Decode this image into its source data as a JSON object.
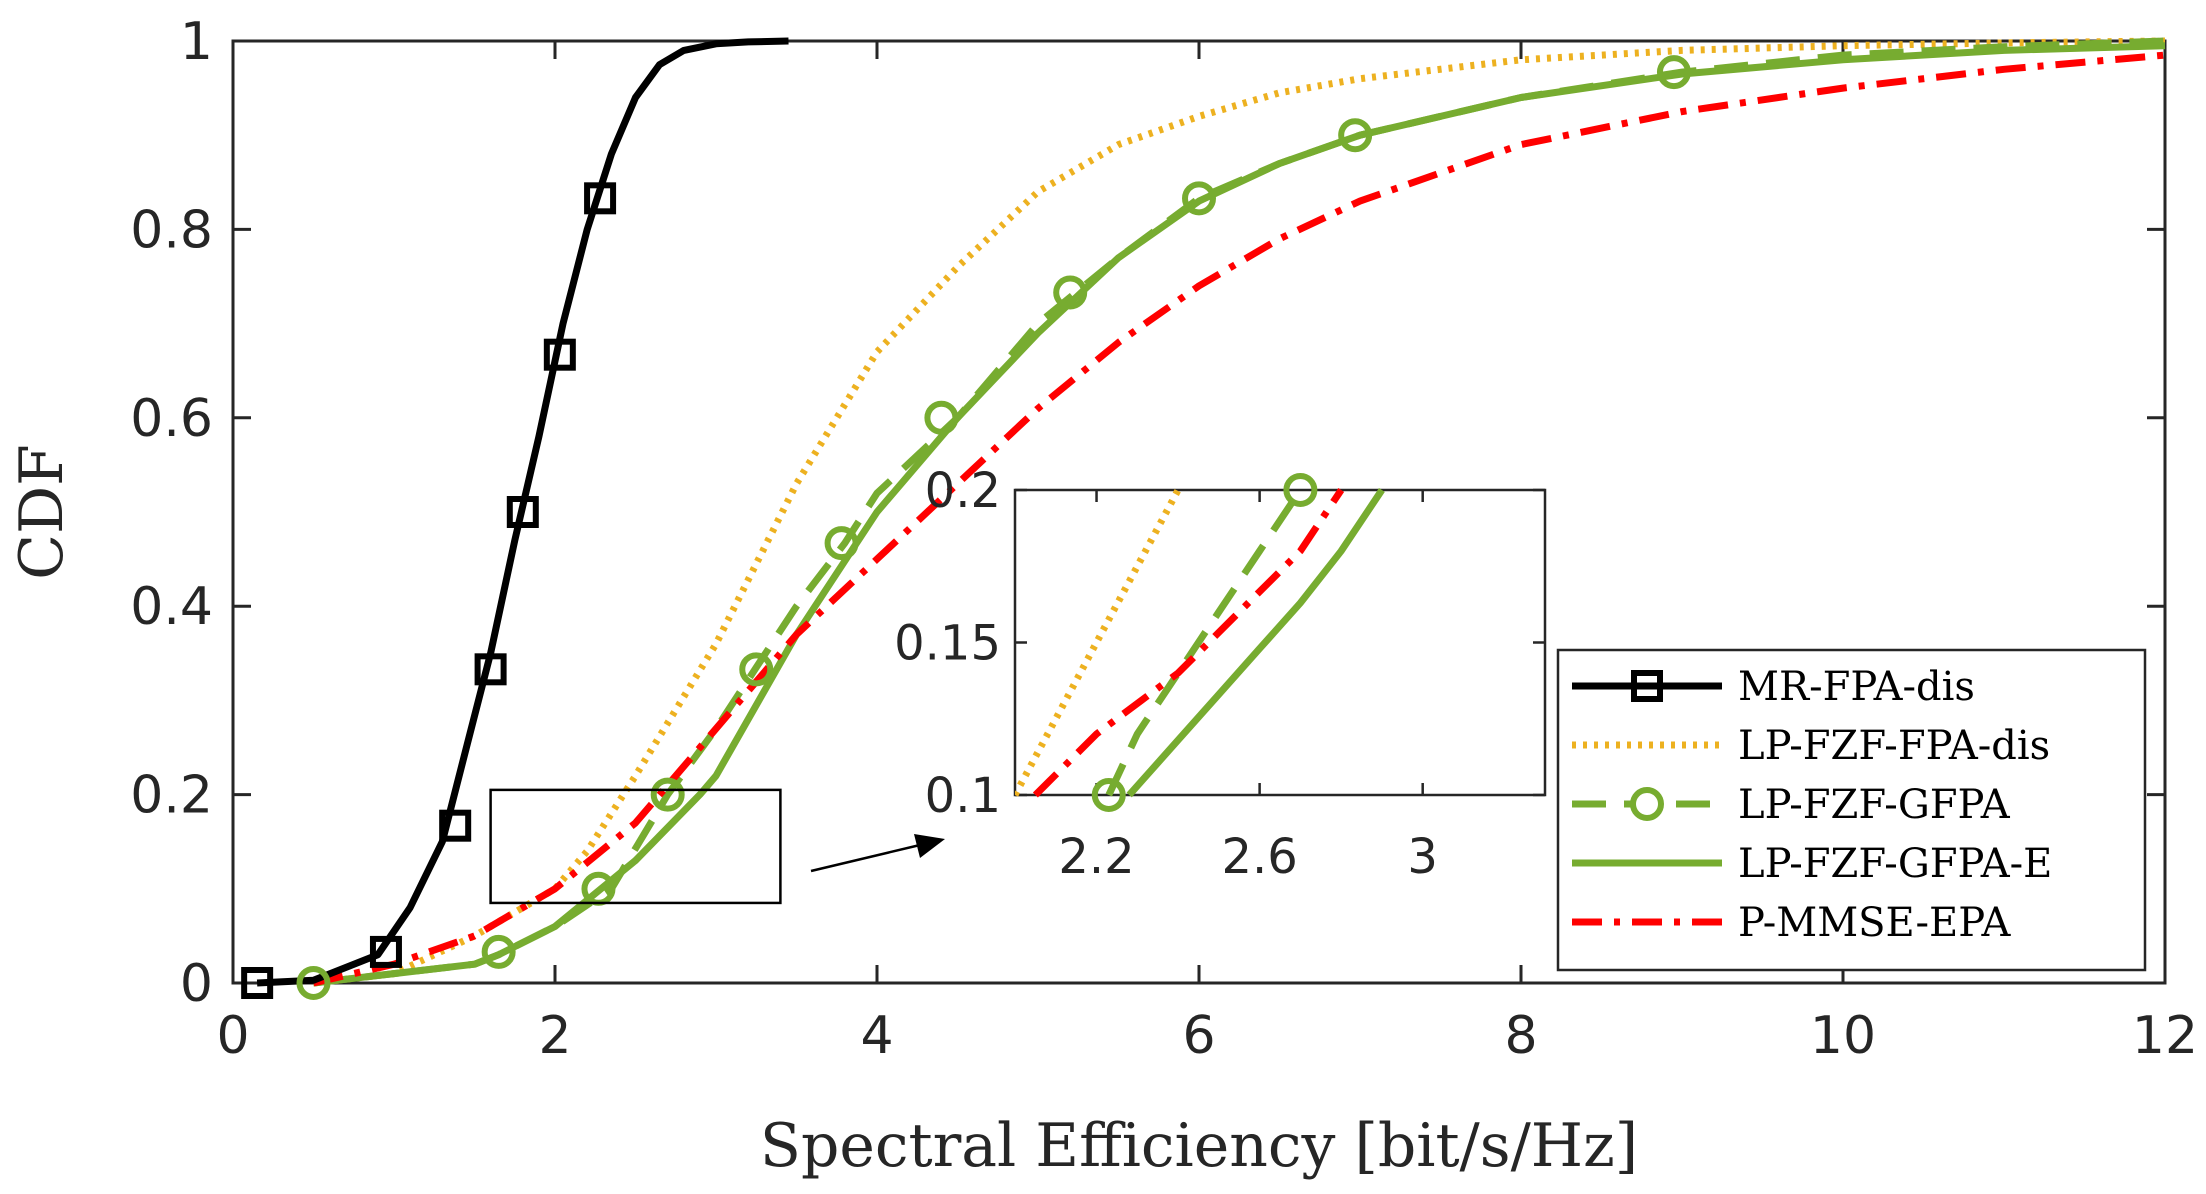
{
  "chart_data": {
    "type": "line",
    "title": "",
    "xlabel": "Spectral Efficiency [bit/s/Hz]",
    "ylabel": "CDF",
    "xlim": [
      0,
      12
    ],
    "ylim": [
      0,
      1
    ],
    "xticks": [
      0,
      2,
      4,
      6,
      8,
      10,
      12
    ],
    "yticks": [
      0,
      0.2,
      0.4,
      0.6,
      0.8,
      1
    ],
    "xtick_labels": [
      "0",
      "2",
      "4",
      "6",
      "8",
      "10",
      "12"
    ],
    "ytick_labels": [
      "0",
      "0.2",
      "0.4",
      "0.6",
      "0.8",
      "1"
    ],
    "grid": false,
    "legend_position": "lower-right",
    "colors": {
      "black": "#000000",
      "orange": "#EDB120",
      "green": "#77AC30",
      "red": "#FF0000"
    },
    "series": [
      {
        "name": "MR-FPA-dis",
        "color": "#000000",
        "style": "solid",
        "marker": "square",
        "x": [
          0.15,
          0.5,
          0.9,
          1.1,
          1.3,
          1.45,
          1.6,
          1.75,
          1.9,
          2.05,
          2.2,
          2.35,
          2.5,
          2.65,
          2.8,
          3.0,
          3.2,
          3.45
        ],
        "y": [
          0,
          0.003,
          0.03,
          0.08,
          0.15,
          0.25,
          0.35,
          0.47,
          0.58,
          0.7,
          0.8,
          0.88,
          0.94,
          0.975,
          0.99,
          0.997,
          0.999,
          1.0
        ],
        "marker_x": [
          0.15,
          0.95,
          1.38,
          1.6,
          1.8,
          2.03,
          2.28
        ],
        "marker_y": [
          0,
          0.033,
          0.167,
          0.333,
          0.5,
          0.667,
          0.833
        ]
      },
      {
        "name": "LP-FZF-FPA-dis",
        "color": "#EDB120",
        "style": "dotted",
        "marker": "none",
        "x": [
          0.5,
          1.0,
          1.5,
          2.0,
          2.2,
          2.5,
          3.0,
          3.5,
          4.0,
          4.5,
          5.0,
          5.5,
          6.0,
          6.5,
          7.0,
          8.0,
          9.0,
          10.0,
          11.0,
          12.0
        ],
        "y": [
          0,
          0.01,
          0.05,
          0.1,
          0.14,
          0.22,
          0.36,
          0.53,
          0.67,
          0.76,
          0.84,
          0.89,
          0.92,
          0.945,
          0.96,
          0.98,
          0.99,
          0.995,
          0.998,
          1.0
        ]
      },
      {
        "name": "LP-FZF-GFPA",
        "color": "#77AC30",
        "style": "dashed",
        "marker": "circle",
        "x": [
          0.5,
          1.0,
          1.5,
          1.65,
          2.0,
          2.35,
          2.7,
          3.0,
          3.5,
          3.8,
          4.0,
          4.5,
          5.0,
          5.5,
          6.0,
          6.5,
          7.0,
          8.0,
          9.0,
          10.0,
          11.0,
          12.0
        ],
        "y": [
          0,
          0.01,
          0.02,
          0.03,
          0.06,
          0.1,
          0.2,
          0.27,
          0.4,
          0.467,
          0.52,
          0.6,
          0.7,
          0.77,
          0.833,
          0.87,
          0.9,
          0.94,
          0.967,
          0.985,
          0.994,
          1.0
        ],
        "marker_x": [
          0.5,
          1.65,
          2.27,
          2.7,
          3.25,
          3.78,
          4.4,
          5.2,
          6.0,
          6.97,
          8.95
        ],
        "marker_y": [
          0,
          0.033,
          0.1,
          0.2,
          0.333,
          0.467,
          0.6,
          0.733,
          0.833,
          0.9,
          0.967
        ]
      },
      {
        "name": "LP-FZF-GFPA-E",
        "color": "#77AC30",
        "style": "solid",
        "marker": "none",
        "x": [
          0.5,
          1.0,
          1.5,
          1.65,
          2.0,
          2.5,
          2.9,
          3.0,
          3.5,
          4.0,
          4.5,
          5.0,
          5.5,
          6.0,
          6.5,
          7.0,
          8.0,
          9.0,
          10.0,
          11.0,
          12.0
        ],
        "y": [
          0,
          0.01,
          0.02,
          0.03,
          0.06,
          0.13,
          0.2,
          0.22,
          0.37,
          0.5,
          0.6,
          0.69,
          0.77,
          0.83,
          0.87,
          0.9,
          0.94,
          0.965,
          0.98,
          0.99,
          0.995
        ]
      },
      {
        "name": "P-MMSE-EPA",
        "color": "#FF0000",
        "style": "dashdot",
        "marker": "none",
        "x": [
          0.5,
          1.0,
          1.5,
          2.0,
          2.5,
          3.0,
          3.5,
          4.0,
          4.5,
          5.0,
          5.5,
          6.0,
          6.5,
          7.0,
          8.0,
          9.0,
          10.0,
          11.0,
          12.0
        ],
        "y": [
          0,
          0.02,
          0.05,
          0.1,
          0.17,
          0.27,
          0.37,
          0.45,
          0.53,
          0.61,
          0.68,
          0.74,
          0.79,
          0.83,
          0.89,
          0.925,
          0.95,
          0.97,
          0.985
        ]
      }
    ],
    "inset": {
      "xlim": [
        2.0,
        3.3
      ],
      "ylim": [
        0.1,
        0.2
      ],
      "xticks": [
        2.2,
        2.6,
        3.0
      ],
      "xtick_labels": [
        "2.2",
        "2.6",
        "3"
      ],
      "yticks": [
        0.1,
        0.15,
        0.2
      ],
      "ytick_labels": [
        "0.1",
        "0.15",
        "0.2"
      ],
      "zoom_region": {
        "x": [
          1.6,
          3.4
        ],
        "y": [
          0.085,
          0.205
        ]
      },
      "series": [
        {
          "name": "LP-FZF-FPA-dis",
          "x": [
            2.0,
            2.1,
            2.2,
            2.3,
            2.4
          ],
          "y": [
            0.1,
            0.125,
            0.15,
            0.175,
            0.2
          ]
        },
        {
          "name": "LP-FZF-GFPA",
          "x": [
            2.23,
            2.3,
            2.4,
            2.5,
            2.6,
            2.7
          ],
          "y": [
            0.1,
            0.12,
            0.14,
            0.16,
            0.18,
            0.2
          ]
        },
        {
          "name": "LP-FZF-GFPA-E",
          "x": [
            2.28,
            2.4,
            2.5,
            2.6,
            2.7,
            2.8,
            2.9
          ],
          "y": [
            0.1,
            0.118,
            0.133,
            0.148,
            0.163,
            0.18,
            0.2
          ]
        },
        {
          "name": "P-MMSE-EPA",
          "x": [
            2.05,
            2.2,
            2.4,
            2.55,
            2.7,
            2.8
          ],
          "y": [
            0.1,
            0.12,
            0.14,
            0.16,
            0.18,
            0.2
          ]
        }
      ],
      "markers": [
        {
          "series": "LP-FZF-GFPA",
          "x": [
            2.23,
            2.7
          ],
          "y": [
            0.1,
            0.2
          ]
        }
      ]
    }
  }
}
